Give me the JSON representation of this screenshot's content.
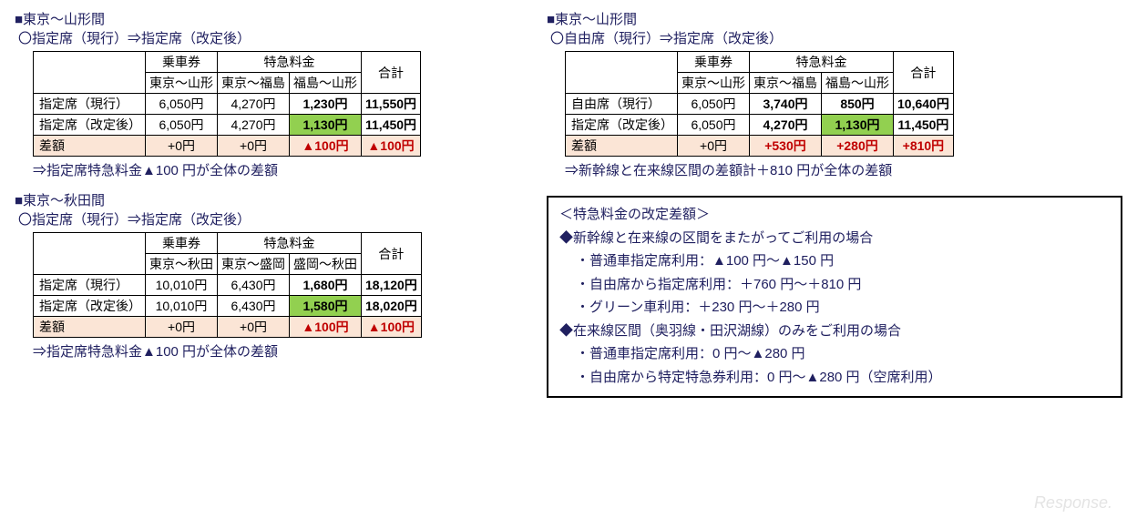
{
  "sec1": {
    "title": "■東京～山形間",
    "sub": "〇指定席（現行）⇒指定席（改定後）",
    "hdr_fare": "乗車券",
    "hdr_exp": "特急料金",
    "hdr_total": "合計",
    "col_fare": "東京～山形",
    "col_exp1": "東京～福島",
    "col_exp2": "福島～山形",
    "r1_label": "指定席（現行）",
    "r1_fare": "6,050円",
    "r1_exp1": "4,270円",
    "r1_exp2": "1,230円",
    "r1_total": "11,550円",
    "r2_label": "指定席（改定後）",
    "r2_fare": "6,050円",
    "r2_exp1": "4,270円",
    "r2_exp2": "1,130円",
    "r2_total": "11,450円",
    "r3_label": "差額",
    "r3_fare": "+0円",
    "r3_exp1": "+0円",
    "r3_exp2": "▲100円",
    "r3_total": "▲100円",
    "note": "⇒指定席特急料金▲100 円が全体の差額"
  },
  "sec2": {
    "title": "■東京～山形間",
    "sub": "〇自由席（現行）⇒指定席（改定後）",
    "hdr_fare": "乗車券",
    "hdr_exp": "特急料金",
    "hdr_total": "合計",
    "col_fare": "東京～山形",
    "col_exp1": "東京～福島",
    "col_exp2": "福島～山形",
    "r1_label": "自由席（現行）",
    "r1_fare": "6,050円",
    "r1_exp1": "3,740円",
    "r1_exp2": "850円",
    "r1_total": "10,640円",
    "r2_label": "指定席（改定後）",
    "r2_fare": "6,050円",
    "r2_exp1": "4,270円",
    "r2_exp2": "1,130円",
    "r2_total": "11,450円",
    "r3_label": "差額",
    "r3_fare": "+0円",
    "r3_exp1": "+530円",
    "r3_exp2": "+280円",
    "r3_total": "+810円",
    "note": "⇒新幹線と在来線区間の差額計＋810 円が全体の差額"
  },
  "sec3": {
    "title": "■東京～秋田間",
    "sub": "〇指定席（現行）⇒指定席（改定後）",
    "hdr_fare": "乗車券",
    "hdr_exp": "特急料金",
    "hdr_total": "合計",
    "col_fare": "東京～秋田",
    "col_exp1": "東京～盛岡",
    "col_exp2": "盛岡～秋田",
    "r1_label": "指定席（現行）",
    "r1_fare": "10,010円",
    "r1_exp1": "6,430円",
    "r1_exp2": "1,680円",
    "r1_total": "18,120円",
    "r2_label": "指定席（改定後）",
    "r2_fare": "10,010円",
    "r2_exp1": "6,430円",
    "r2_exp2": "1,580円",
    "r2_total": "18,020円",
    "r3_label": "差額",
    "r3_fare": "+0円",
    "r3_exp1": "+0円",
    "r3_exp2": "▲100円",
    "r3_total": "▲100円",
    "note": "⇒指定席特急料金▲100 円が全体の差額"
  },
  "summary": {
    "hdr": "＜特急料金の改定差額＞",
    "line1": "◆新幹線と在来線の区間をまたがってご利用の場合",
    "line1a": "・普通車指定席利用：▲100 円～▲150 円",
    "line1b": "・自由席から指定席利用：＋760 円～＋810 円",
    "line1c": "・グリーン車利用：＋230 円～＋280 円",
    "line2": "◆在来線区間（奥羽線・田沢湖線）のみをご利用の場合",
    "line2a": "・普通車指定席利用：0 円～▲280 円",
    "line2b": "・自由席から特定特急券利用：0 円～▲280 円（空席利用）"
  },
  "watermark": "Response."
}
